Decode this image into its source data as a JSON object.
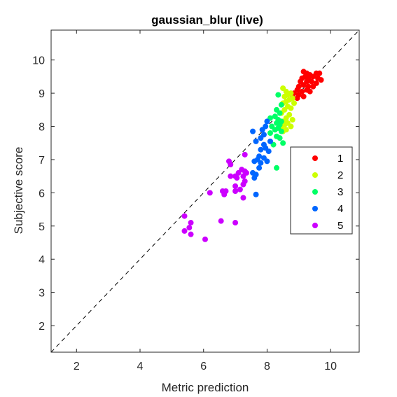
{
  "chart_data": {
    "type": "scatter",
    "title": "gaussian_blur (live)",
    "xlabel": "Metric prediction",
    "ylabel": "Subjective score",
    "xlim": [
      1.2,
      10.9
    ],
    "ylim": [
      1.2,
      10.9
    ],
    "xticks": [
      2,
      4,
      6,
      8,
      10
    ],
    "yticks": [
      2,
      3,
      4,
      5,
      6,
      7,
      8,
      9,
      10
    ],
    "grid": false,
    "legend_position": "right",
    "reference_line": "y = x (dashed)",
    "series": [
      {
        "name": "1",
        "color": "#ff0000",
        "points": [
          [
            9.15,
            9.65
          ],
          [
            9.25,
            9.6
          ],
          [
            9.35,
            9.55
          ],
          [
            9.55,
            9.6
          ],
          [
            9.65,
            9.6
          ],
          [
            9.2,
            9.5
          ],
          [
            9.1,
            9.45
          ],
          [
            9.3,
            9.45
          ],
          [
            9.45,
            9.5
          ],
          [
            9.6,
            9.45
          ],
          [
            9.05,
            9.35
          ],
          [
            9.25,
            9.35
          ],
          [
            9.4,
            9.35
          ],
          [
            9.55,
            9.3
          ],
          [
            9.7,
            9.4
          ],
          [
            9.0,
            9.2
          ],
          [
            9.15,
            9.25
          ],
          [
            9.3,
            9.2
          ],
          [
            9.45,
            9.2
          ],
          [
            8.95,
            9.1
          ],
          [
            9.1,
            9.05
          ],
          [
            9.25,
            9.1
          ],
          [
            9.35,
            9.05
          ],
          [
            8.85,
            9.0
          ],
          [
            9.0,
            8.95
          ],
          [
            9.15,
            8.9
          ],
          [
            8.8,
            8.95
          ],
          [
            8.95,
            8.85
          ]
        ]
      },
      {
        "name": "2",
        "color": "#ccff00",
        "points": [
          [
            8.5,
            9.15
          ],
          [
            8.6,
            9.05
          ],
          [
            8.75,
            9.0
          ],
          [
            8.65,
            8.95
          ],
          [
            8.55,
            8.9
          ],
          [
            8.8,
            8.85
          ],
          [
            8.7,
            8.8
          ],
          [
            8.6,
            8.75
          ],
          [
            8.5,
            8.7
          ],
          [
            8.85,
            8.7
          ],
          [
            8.65,
            8.6
          ],
          [
            8.75,
            8.55
          ],
          [
            8.55,
            8.5
          ],
          [
            8.45,
            8.4
          ],
          [
            8.7,
            8.35
          ],
          [
            8.6,
            8.25
          ],
          [
            8.8,
            8.2
          ],
          [
            8.5,
            8.15
          ],
          [
            8.65,
            8.1
          ],
          [
            8.55,
            8.05
          ],
          [
            8.75,
            8.0
          ],
          [
            8.45,
            7.95
          ],
          [
            8.6,
            7.9
          ],
          [
            8.5,
            7.85
          ]
        ]
      },
      {
        "name": "3",
        "color": "#00ff66",
        "points": [
          [
            8.35,
            8.95
          ],
          [
            8.45,
            8.65
          ],
          [
            8.3,
            8.5
          ],
          [
            8.4,
            8.4
          ],
          [
            8.25,
            8.3
          ],
          [
            8.35,
            8.2
          ],
          [
            8.45,
            8.15
          ],
          [
            8.3,
            8.1
          ],
          [
            8.4,
            8.05
          ],
          [
            8.15,
            8.0
          ],
          [
            8.35,
            7.95
          ],
          [
            8.25,
            7.9
          ],
          [
            8.45,
            7.85
          ],
          [
            8.1,
            7.8
          ],
          [
            8.3,
            7.7
          ],
          [
            8.4,
            7.65
          ],
          [
            8.5,
            7.5
          ],
          [
            8.2,
            7.45
          ],
          [
            8.3,
            6.75
          ],
          [
            8.1,
            8.25
          ]
        ]
      },
      {
        "name": "4",
        "color": "#0066ff",
        "points": [
          [
            8.0,
            8.15
          ],
          [
            7.95,
            8.0
          ],
          [
            7.85,
            7.9
          ],
          [
            7.55,
            7.85
          ],
          [
            7.9,
            7.75
          ],
          [
            7.8,
            7.65
          ],
          [
            7.65,
            7.55
          ],
          [
            8.1,
            7.55
          ],
          [
            7.9,
            7.45
          ],
          [
            7.95,
            7.35
          ],
          [
            7.8,
            7.3
          ],
          [
            8.05,
            7.25
          ],
          [
            7.75,
            7.1
          ],
          [
            7.9,
            7.05
          ],
          [
            7.7,
            7.0
          ],
          [
            8.0,
            6.95
          ],
          [
            7.6,
            6.95
          ],
          [
            7.8,
            6.9
          ],
          [
            7.75,
            6.75
          ],
          [
            7.55,
            6.6
          ],
          [
            7.65,
            6.55
          ],
          [
            7.6,
            6.45
          ],
          [
            7.65,
            5.95
          ]
        ]
      },
      {
        "name": "5",
        "color": "#cc00ff",
        "points": [
          [
            7.3,
            7.15
          ],
          [
            6.8,
            6.95
          ],
          [
            6.85,
            6.85
          ],
          [
            7.2,
            6.7
          ],
          [
            7.3,
            6.65
          ],
          [
            7.1,
            6.6
          ],
          [
            7.35,
            6.6
          ],
          [
            6.85,
            6.5
          ],
          [
            7.0,
            6.5
          ],
          [
            7.25,
            6.5
          ],
          [
            7.05,
            6.45
          ],
          [
            7.3,
            6.35
          ],
          [
            7.0,
            6.2
          ],
          [
            7.25,
            6.25
          ],
          [
            6.6,
            6.05
          ],
          [
            6.7,
            6.05
          ],
          [
            7.0,
            6.05
          ],
          [
            7.15,
            6.1
          ],
          [
            6.2,
            6.0
          ],
          [
            6.65,
            5.95
          ],
          [
            7.25,
            5.85
          ],
          [
            6.55,
            5.15
          ],
          [
            7.0,
            5.1
          ],
          [
            5.4,
            5.3
          ],
          [
            5.6,
            5.1
          ],
          [
            5.55,
            4.95
          ],
          [
            5.4,
            4.85
          ],
          [
            5.6,
            4.75
          ],
          [
            6.05,
            4.6
          ]
        ]
      }
    ]
  }
}
